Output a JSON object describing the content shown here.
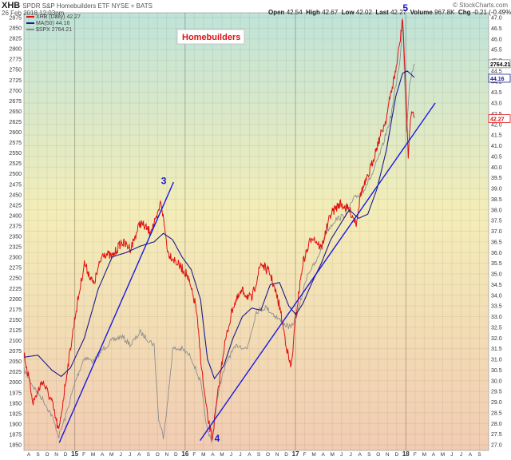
{
  "header": {
    "symbol": "XHB",
    "name": "SPDR S&P Homebuilders ETF  NYSE + BATS",
    "brand": "© StockCharts.com",
    "date": "26 Feb 2018 12:03pm",
    "quote": [
      {
        "label": "Open",
        "value": "42.54"
      },
      {
        "label": "High",
        "value": "42.67"
      },
      {
        "label": "Low",
        "value": "42.02"
      },
      {
        "label": "Last",
        "value": "42.27"
      },
      {
        "label": "Volume",
        "value": "967.8K"
      },
      {
        "label": "Chg",
        "value": "-0.21 (-0.49%)"
      }
    ]
  },
  "legend": [
    {
      "text": "XHB (Daily) 42.27",
      "color": "#dd1111"
    },
    {
      "text": "MA(50) 44.16",
      "color": "#1a1a8a"
    },
    {
      "text": "$SPX 2764.21",
      "color": "#888888"
    }
  ],
  "chart_data": {
    "type": "line",
    "title_box": "Homebuilders",
    "right_axis": {
      "min": 27.0,
      "max": 47.0,
      "step": 0.5
    },
    "left_axis": {
      "min": 1850,
      "max": 2875,
      "step": 25
    },
    "x_ticks": [
      "A",
      "S",
      "O",
      "N",
      "D",
      "15",
      "F",
      "M",
      "A",
      "M",
      "J",
      "J",
      "A",
      "S",
      "O",
      "N",
      "D",
      "16",
      "F",
      "M",
      "A",
      "M",
      "J",
      "J",
      "A",
      "S",
      "O",
      "N",
      "D",
      "17",
      "F",
      "M",
      "A",
      "M",
      "J",
      "J",
      "A",
      "S",
      "O",
      "N",
      "D",
      "18",
      "F",
      "M",
      "A",
      "M",
      "J",
      "J",
      "A",
      "S"
    ],
    "year_ticks": [
      "15",
      "16",
      "17",
      "18"
    ],
    "last_values": {
      "spx": "2764.21",
      "ma": "44.16",
      "xhb": "42.27"
    },
    "waves": [
      {
        "label": "3",
        "t": 0.295,
        "v": 39.2
      },
      {
        "label": "4",
        "t": 0.41,
        "v": 27.15
      },
      {
        "label": "5",
        "t": 0.815,
        "v": 47.3
      }
    ],
    "trendlines": [
      {
        "from": [
          0.076,
          27.1
        ],
        "to": [
          0.322,
          39.3
        ]
      },
      {
        "from": [
          0.379,
          27.2
        ],
        "to": [
          0.885,
          43.0
        ]
      }
    ],
    "xhb_path": [
      [
        0.0,
        31.3
      ],
      [
        0.02,
        29.0
      ],
      [
        0.04,
        30.0
      ],
      [
        0.06,
        29.0
      ],
      [
        0.075,
        27.6
      ],
      [
        0.09,
        30.0
      ],
      [
        0.11,
        33.0
      ],
      [
        0.13,
        35.5
      ],
      [
        0.15,
        34.5
      ],
      [
        0.17,
        36.0
      ],
      [
        0.19,
        35.8
      ],
      [
        0.21,
        36.5
      ],
      [
        0.23,
        36.2
      ],
      [
        0.25,
        37.4
      ],
      [
        0.27,
        37.0
      ],
      [
        0.285,
        37.5
      ],
      [
        0.295,
        38.4
      ],
      [
        0.31,
        36.0
      ],
      [
        0.33,
        35.5
      ],
      [
        0.35,
        35.0
      ],
      [
        0.37,
        33.5
      ],
      [
        0.385,
        30.0
      ],
      [
        0.395,
        28.3
      ],
      [
        0.405,
        27.3
      ],
      [
        0.415,
        29.0
      ],
      [
        0.43,
        31.5
      ],
      [
        0.45,
        33.5
      ],
      [
        0.47,
        34.2
      ],
      [
        0.49,
        33.8
      ],
      [
        0.51,
        35.5
      ],
      [
        0.53,
        35.0
      ],
      [
        0.55,
        33.5
      ],
      [
        0.57,
        31.0
      ],
      [
        0.575,
        30.6
      ],
      [
        0.585,
        33.0
      ],
      [
        0.6,
        35.5
      ],
      [
        0.62,
        36.8
      ],
      [
        0.64,
        36.2
      ],
      [
        0.66,
        37.8
      ],
      [
        0.68,
        38.3
      ],
      [
        0.7,
        38.0
      ],
      [
        0.715,
        37.4
      ],
      [
        0.725,
        38.8
      ],
      [
        0.74,
        39.5
      ],
      [
        0.76,
        41.0
      ],
      [
        0.78,
        42.3
      ],
      [
        0.79,
        43.5
      ],
      [
        0.8,
        44.5
      ],
      [
        0.81,
        46.0
      ],
      [
        0.815,
        47.0
      ],
      [
        0.823,
        43.0
      ],
      [
        0.827,
        40.5
      ],
      [
        0.833,
        42.6
      ],
      [
        0.84,
        42.3
      ]
    ],
    "ma_path": [
      [
        0.0,
        31.1
      ],
      [
        0.03,
        31.2
      ],
      [
        0.06,
        30.5
      ],
      [
        0.08,
        30.2
      ],
      [
        0.1,
        30.6
      ],
      [
        0.13,
        32.0
      ],
      [
        0.16,
        34.3
      ],
      [
        0.19,
        35.8
      ],
      [
        0.22,
        36.0
      ],
      [
        0.25,
        36.3
      ],
      [
        0.28,
        36.5
      ],
      [
        0.3,
        36.9
      ],
      [
        0.32,
        36.6
      ],
      [
        0.34,
        35.8
      ],
      [
        0.36,
        35.2
      ],
      [
        0.38,
        33.8
      ],
      [
        0.395,
        31.0
      ],
      [
        0.41,
        30.1
      ],
      [
        0.43,
        30.7
      ],
      [
        0.45,
        32.0
      ],
      [
        0.47,
        33.0
      ],
      [
        0.49,
        33.4
      ],
      [
        0.51,
        33.3
      ],
      [
        0.53,
        34.5
      ],
      [
        0.55,
        34.6
      ],
      [
        0.57,
        33.5
      ],
      [
        0.585,
        33.1
      ],
      [
        0.6,
        33.6
      ],
      [
        0.62,
        34.6
      ],
      [
        0.64,
        35.5
      ],
      [
        0.66,
        36.6
      ],
      [
        0.68,
        37.3
      ],
      [
        0.7,
        38.0
      ],
      [
        0.72,
        37.6
      ],
      [
        0.74,
        37.8
      ],
      [
        0.76,
        39.0
      ],
      [
        0.78,
        40.8
      ],
      [
        0.8,
        43.3
      ],
      [
        0.815,
        44.4
      ],
      [
        0.825,
        44.5
      ],
      [
        0.84,
        44.2
      ]
    ],
    "spx_path": [
      [
        0.0,
        2030
      ],
      [
        0.02,
        1990
      ],
      [
        0.04,
        1960
      ],
      [
        0.06,
        1920
      ],
      [
        0.075,
        1870
      ],
      [
        0.09,
        1920
      ],
      [
        0.11,
        2000
      ],
      [
        0.13,
        2060
      ],
      [
        0.15,
        2050
      ],
      [
        0.17,
        2080
      ],
      [
        0.19,
        2100
      ],
      [
        0.21,
        2110
      ],
      [
        0.23,
        2090
      ],
      [
        0.25,
        2120
      ],
      [
        0.27,
        2100
      ],
      [
        0.28,
        2090
      ],
      [
        0.29,
        1910
      ],
      [
        0.3,
        1870
      ],
      [
        0.31,
        1960
      ],
      [
        0.32,
        2080
      ],
      [
        0.34,
        2080
      ],
      [
        0.36,
        2060
      ],
      [
        0.38,
        2000
      ],
      [
        0.395,
        1880
      ],
      [
        0.405,
        1860
      ],
      [
        0.42,
        1990
      ],
      [
        0.44,
        2060
      ],
      [
        0.46,
        2090
      ],
      [
        0.48,
        2080
      ],
      [
        0.5,
        2170
      ],
      [
        0.52,
        2180
      ],
      [
        0.54,
        2160
      ],
      [
        0.56,
        2140
      ],
      [
        0.575,
        2130
      ],
      [
        0.59,
        2170
      ],
      [
        0.61,
        2260
      ],
      [
        0.63,
        2290
      ],
      [
        0.65,
        2360
      ],
      [
        0.67,
        2390
      ],
      [
        0.69,
        2400
      ],
      [
        0.71,
        2440
      ],
      [
        0.73,
        2460
      ],
      [
        0.75,
        2500
      ],
      [
        0.77,
        2560
      ],
      [
        0.79,
        2640
      ],
      [
        0.81,
        2780
      ],
      [
        0.815,
        2870
      ],
      [
        0.823,
        2600
      ],
      [
        0.83,
        2720
      ],
      [
        0.84,
        2764
      ]
    ]
  }
}
